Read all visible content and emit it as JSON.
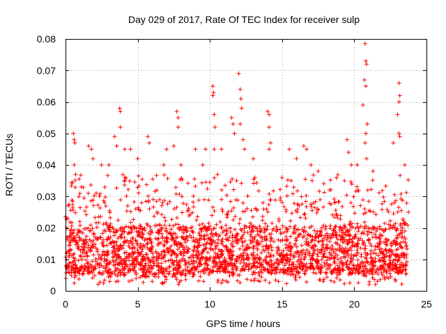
{
  "chart_data": {
    "type": "scatter",
    "title": "Day 029 of 2017, Rate Of TEC Index for receiver sulp",
    "xlabel": "GPS time / hours",
    "ylabel": "ROTI / TECUs",
    "xlim": [
      0,
      25
    ],
    "ylim": [
      0,
      0.08
    ],
    "x_ticks": [
      0,
      5,
      10,
      15,
      20,
      25
    ],
    "x_tick_labels": [
      "0",
      "5",
      "10",
      "15",
      "20",
      "25"
    ],
    "y_ticks": [
      0,
      0.01,
      0.02,
      0.03,
      0.04,
      0.05,
      0.06,
      0.07,
      0.08
    ],
    "y_tick_labels": [
      "0",
      "0.01",
      "0.02",
      "0.03",
      "0.04",
      "0.05",
      "0.06",
      "0.07",
      "0.08"
    ],
    "grid": true,
    "marker": "+",
    "color": "#ff0000",
    "data_coverage_hours": [
      0,
      23.75
    ],
    "typical_range": [
      0.005,
      0.025
    ],
    "series": [
      {
        "name": "ROTI",
        "points": [
          [
            0.0,
            0.0235
          ],
          [
            0.15,
            0.023
          ],
          [
            0.55,
            0.05
          ],
          [
            0.6,
            0.048
          ],
          [
            0.65,
            0.047
          ],
          [
            0.6,
            0.04
          ],
          [
            0.7,
            0.037
          ],
          [
            1.1,
            0.033
          ],
          [
            1.6,
            0.046
          ],
          [
            1.8,
            0.045
          ],
          [
            1.9,
            0.042
          ],
          [
            2.5,
            0.04
          ],
          [
            3.0,
            0.04
          ],
          [
            3.4,
            0.049
          ],
          [
            3.55,
            0.046
          ],
          [
            3.75,
            0.058
          ],
          [
            3.8,
            0.057
          ],
          [
            3.8,
            0.052
          ],
          [
            4.1,
            0.045
          ],
          [
            4.5,
            0.045
          ],
          [
            5.0,
            0.042
          ],
          [
            5.7,
            0.049
          ],
          [
            5.8,
            0.047
          ],
          [
            6.8,
            0.04
          ],
          [
            7.0,
            0.045
          ],
          [
            7.5,
            0.046
          ],
          [
            7.7,
            0.057
          ],
          [
            7.8,
            0.055
          ],
          [
            7.8,
            0.052
          ],
          [
            8.0,
            0.04
          ],
          [
            9.0,
            0.045
          ],
          [
            9.5,
            0.04
          ],
          [
            9.7,
            0.045
          ],
          [
            10.2,
            0.065
          ],
          [
            10.25,
            0.063
          ],
          [
            10.2,
            0.062
          ],
          [
            10.3,
            0.056
          ],
          [
            10.35,
            0.052
          ],
          [
            10.3,
            0.045
          ],
          [
            10.8,
            0.045
          ],
          [
            11.5,
            0.055
          ],
          [
            11.6,
            0.053
          ],
          [
            11.7,
            0.05
          ],
          [
            12.0,
            0.069
          ],
          [
            12.1,
            0.064
          ],
          [
            12.15,
            0.061
          ],
          [
            12.2,
            0.058
          ],
          [
            12.1,
            0.053
          ],
          [
            12.3,
            0.048
          ],
          [
            12.4,
            0.045
          ],
          [
            13.0,
            0.042
          ],
          [
            14.0,
            0.057
          ],
          [
            14.1,
            0.056
          ],
          [
            14.1,
            0.052
          ],
          [
            14.2,
            0.047
          ],
          [
            14.1,
            0.045
          ],
          [
            15.5,
            0.045
          ],
          [
            16.0,
            0.042
          ],
          [
            16.5,
            0.046
          ],
          [
            16.7,
            0.045
          ],
          [
            17.0,
            0.04
          ],
          [
            17.5,
            0.038
          ],
          [
            19.5,
            0.048
          ],
          [
            19.6,
            0.044
          ],
          [
            19.8,
            0.04
          ],
          [
            20.2,
            0.04
          ],
          [
            20.6,
            0.059
          ],
          [
            20.75,
            0.0785
          ],
          [
            20.8,
            0.073
          ],
          [
            20.85,
            0.072
          ],
          [
            20.7,
            0.067
          ],
          [
            20.8,
            0.065
          ],
          [
            20.9,
            0.053
          ],
          [
            20.8,
            0.05
          ],
          [
            20.75,
            0.047
          ],
          [
            20.85,
            0.042
          ],
          [
            21.3,
            0.038
          ],
          [
            22.7,
            0.047
          ],
          [
            23.1,
            0.066
          ],
          [
            23.15,
            0.062
          ],
          [
            23.1,
            0.06
          ],
          [
            23.0,
            0.056
          ],
          [
            23.1,
            0.05
          ],
          [
            23.15,
            0.049
          ],
          [
            23.5,
            0.04
          ],
          [
            23.75,
            0.025
          ]
        ]
      }
    ]
  }
}
